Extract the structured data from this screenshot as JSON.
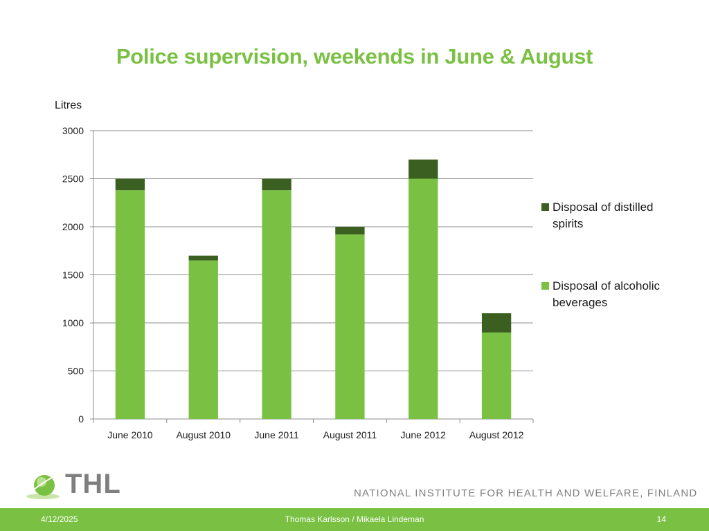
{
  "chart_data": {
    "type": "bar",
    "stacked": true,
    "title": "Police supervision, weekends in June & August",
    "ylabel": "Litres",
    "xlabel": "",
    "ylim": [
      0,
      3000
    ],
    "yticks": [
      0,
      500,
      1000,
      1500,
      2000,
      2500,
      3000
    ],
    "categories": [
      "June 2010",
      "August 2010",
      "June 2011",
      "August 2011",
      "June 2012",
      "August 2012"
    ],
    "series": [
      {
        "name": "Disposal of alcoholic beverages",
        "color": "#7ac143",
        "values": [
          2380,
          1650,
          2380,
          1920,
          2500,
          900
        ]
      },
      {
        "name": "Disposal of distilled spirits",
        "color": "#3a5f20",
        "values": [
          120,
          50,
          120,
          80,
          200,
          200
        ]
      }
    ],
    "legend": "right",
    "grid": true
  },
  "footer": {
    "date": "4/12/2025",
    "author": "Thomas Karlsson / Mikaela Lindeman",
    "page": "14",
    "logo_text": "THL",
    "institute": "NATIONAL INSTITUTE FOR HEALTH AND WELFARE, FINLAND"
  }
}
